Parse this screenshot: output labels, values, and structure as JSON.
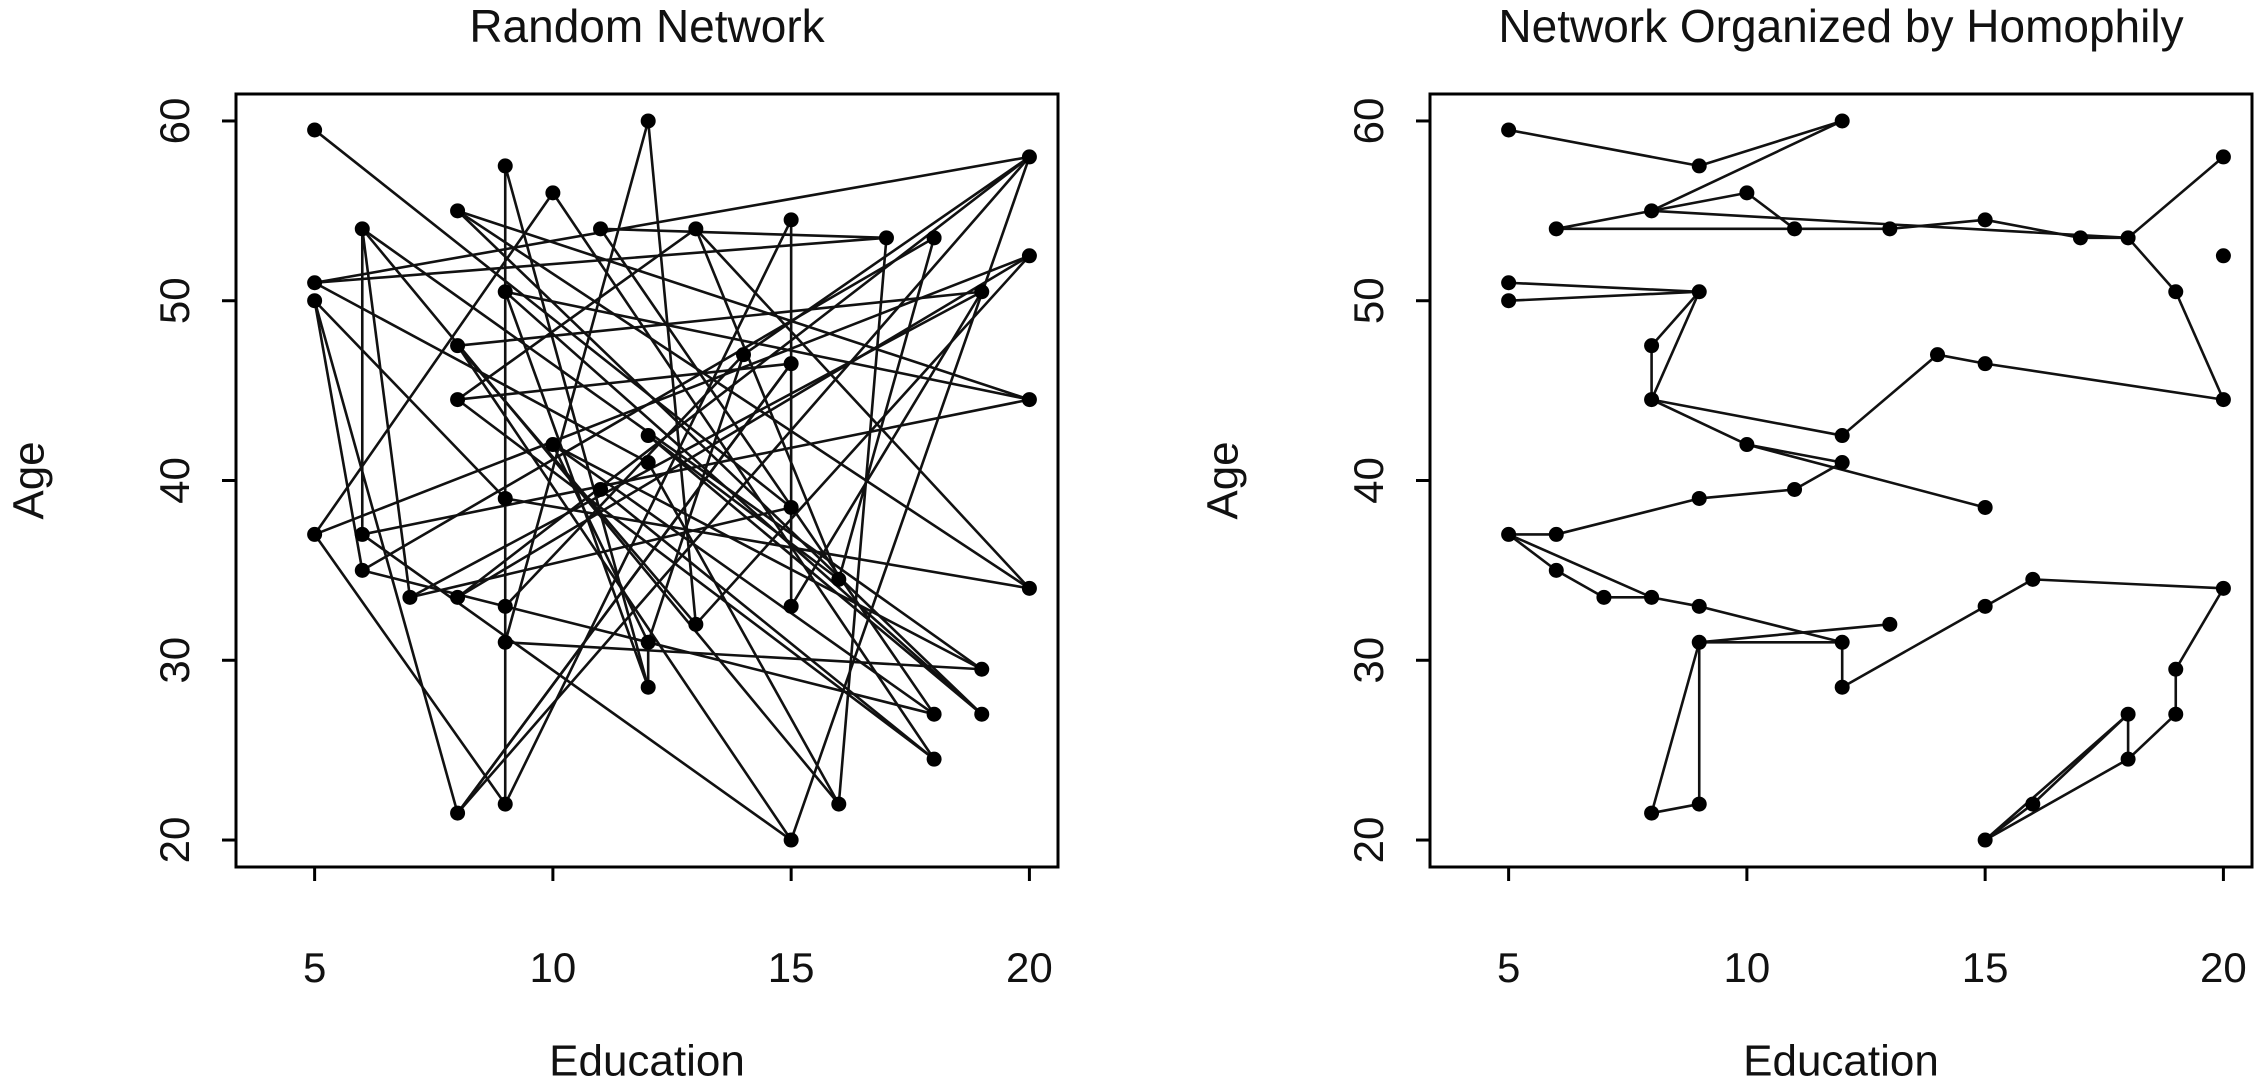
{
  "chart_data": [
    {
      "type": "network",
      "title": "Random Network",
      "x_label": "Education",
      "y_label": "Age",
      "x": [
        5,
        9,
        12,
        8,
        10,
        6,
        11,
        13,
        15,
        17,
        18,
        20,
        20,
        19,
        5,
        5,
        9,
        8,
        8,
        14,
        15,
        20,
        10,
        12,
        12,
        11,
        15,
        9,
        5,
        6,
        6,
        7,
        8,
        9,
        9,
        12,
        13,
        15,
        16,
        20,
        12,
        19,
        19,
        18,
        18,
        16,
        15,
        9,
        8
      ],
      "y": [
        59.5,
        57.5,
        60,
        55,
        56,
        54,
        54,
        54,
        54.5,
        53.5,
        53.5,
        58,
        52.5,
        50.5,
        51,
        50,
        50.5,
        47.5,
        44.5,
        47,
        46.5,
        44.5,
        42,
        42.5,
        41,
        39.5,
        38.5,
        39,
        37,
        37,
        35,
        33.5,
        33.5,
        33,
        31,
        31,
        32,
        33,
        34.5,
        34,
        28.5,
        29.5,
        27,
        27,
        24.5,
        22,
        20,
        22,
        21.5
      ],
      "edges": [
        [
          0,
          26
        ],
        [
          1,
          47
        ],
        [
          1,
          40
        ],
        [
          2,
          34
        ],
        [
          3,
          42
        ],
        [
          3,
          39
        ],
        [
          3,
          21
        ],
        [
          4,
          44
        ],
        [
          4,
          28
        ],
        [
          5,
          31
        ],
        [
          5,
          29
        ],
        [
          5,
          45
        ],
        [
          6,
          9
        ],
        [
          6,
          43
        ],
        [
          7,
          38
        ],
        [
          7,
          18
        ],
        [
          8,
          37
        ],
        [
          9,
          14
        ],
        [
          10,
          30
        ],
        [
          11,
          14
        ],
        [
          11,
          19
        ],
        [
          11,
          32
        ],
        [
          11,
          48
        ],
        [
          12,
          28
        ],
        [
          13,
          17
        ],
        [
          13,
          31
        ],
        [
          14,
          24
        ],
        [
          15,
          30
        ],
        [
          15,
          48
        ],
        [
          15,
          27
        ],
        [
          16,
          42
        ],
        [
          16,
          21
        ],
        [
          17,
          36
        ],
        [
          17,
          46
        ],
        [
          18,
          20
        ],
        [
          19,
          33
        ],
        [
          19,
          35
        ],
        [
          20,
          48
        ],
        [
          21,
          29
        ],
        [
          22,
          41
        ],
        [
          23,
          38
        ],
        [
          24,
          45
        ],
        [
          25,
          44
        ],
        [
          26,
          31
        ],
        [
          27,
          39
        ],
        [
          28,
          47
        ],
        [
          29,
          46
        ],
        [
          30,
          33
        ],
        [
          32,
          12
        ],
        [
          33,
          43
        ],
        [
          34,
          41
        ],
        [
          35,
          40
        ],
        [
          36,
          2
        ],
        [
          37,
          13
        ],
        [
          38,
          10
        ],
        [
          39,
          7
        ],
        [
          40,
          16
        ],
        [
          41,
          5
        ],
        [
          42,
          23
        ],
        [
          43,
          22
        ],
        [
          44,
          18
        ],
        [
          45,
          9
        ],
        [
          46,
          11
        ],
        [
          47,
          8
        ],
        [
          48,
          20
        ],
        [
          36,
          12
        ],
        [
          35,
          22
        ]
      ],
      "xlim": [
        3.35,
        20.6
      ],
      "ylim": [
        18.5,
        61.5
      ],
      "xticks": [
        5,
        10,
        15,
        20
      ],
      "yticks": [
        20,
        30,
        40,
        50,
        60
      ]
    },
    {
      "type": "network",
      "title": "Network Organized by Homophily",
      "x_label": "Education",
      "y_label": "Age",
      "x": [
        5,
        9,
        12,
        8,
        10,
        6,
        11,
        13,
        15,
        17,
        18,
        20,
        20,
        19,
        5,
        5,
        9,
        8,
        8,
        14,
        15,
        20,
        10,
        12,
        12,
        11,
        15,
        9,
        5,
        6,
        6,
        7,
        8,
        9,
        9,
        12,
        13,
        15,
        16,
        20,
        12,
        19,
        19,
        18,
        18,
        16,
        15,
        9,
        8
      ],
      "y": [
        59.5,
        57.5,
        60,
        55,
        56,
        54,
        54,
        54,
        54.5,
        53.5,
        53.5,
        58,
        52.5,
        50.5,
        51,
        50,
        50.5,
        47.5,
        44.5,
        47,
        46.5,
        44.5,
        42,
        42.5,
        41,
        39.5,
        38.5,
        39,
        37,
        37,
        35,
        33.5,
        33.5,
        33,
        31,
        31,
        32,
        33,
        34.5,
        34,
        28.5,
        29.5,
        27,
        27,
        24.5,
        22,
        20,
        22,
        21.5
      ],
      "edges": [
        [
          0,
          1
        ],
        [
          1,
          2
        ],
        [
          2,
          3
        ],
        [
          3,
          4
        ],
        [
          4,
          6
        ],
        [
          3,
          5
        ],
        [
          5,
          6
        ],
        [
          6,
          7
        ],
        [
          7,
          8
        ],
        [
          8,
          9
        ],
        [
          9,
          10
        ],
        [
          3,
          10
        ],
        [
          10,
          11
        ],
        [
          10,
          13
        ],
        [
          13,
          21
        ],
        [
          21,
          20
        ],
        [
          20,
          19
        ],
        [
          19,
          23
        ],
        [
          23,
          18
        ],
        [
          18,
          17
        ],
        [
          17,
          16
        ],
        [
          18,
          16
        ],
        [
          16,
          14
        ],
        [
          16,
          15
        ],
        [
          18,
          22
        ],
        [
          22,
          24
        ],
        [
          22,
          26
        ],
        [
          24,
          25
        ],
        [
          25,
          27
        ],
        [
          27,
          29
        ],
        [
          29,
          28
        ],
        [
          28,
          30
        ],
        [
          30,
          31
        ],
        [
          31,
          32
        ],
        [
          32,
          33
        ],
        [
          33,
          35
        ],
        [
          35,
          40
        ],
        [
          40,
          37
        ],
        [
          37,
          38
        ],
        [
          38,
          39
        ],
        [
          39,
          41
        ],
        [
          41,
          42
        ],
        [
          42,
          44
        ],
        [
          44,
          46
        ],
        [
          46,
          43
        ],
        [
          43,
          44
        ],
        [
          46,
          45
        ],
        [
          45,
          43
        ],
        [
          34,
          36
        ],
        [
          34,
          35
        ],
        [
          34,
          47
        ],
        [
          47,
          48
        ],
        [
          48,
          34
        ],
        [
          28,
          32
        ]
      ],
      "xlim": [
        3.35,
        20.6
      ],
      "ylim": [
        18.5,
        61.5
      ],
      "xticks": [
        5,
        10,
        15,
        20
      ],
      "yticks": [
        20,
        30,
        40,
        50,
        60
      ]
    }
  ]
}
